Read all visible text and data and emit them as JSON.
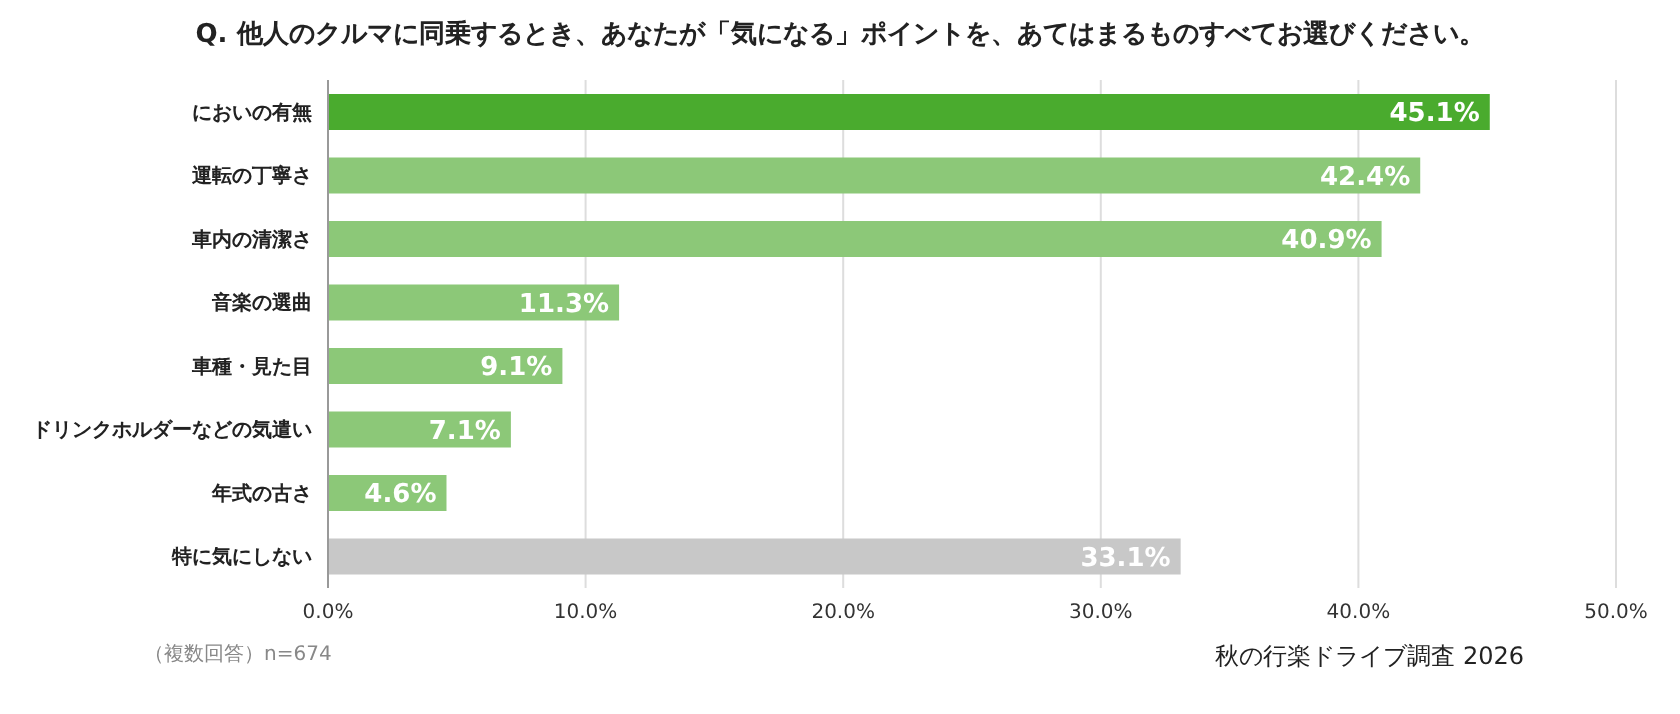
{
  "chart_data": {
    "type": "bar",
    "orientation": "horizontal",
    "title": "Q. 他人のクルマに同乗するとき、あなたが「気になる」ポイントを、あてはまるものすべてお選びください。",
    "categories": [
      "においの有無",
      "運転の丁寧さ",
      "車内の清潔さ",
      "音楽の選曲",
      "車種・見た目",
      "ドリンクホルダーなどの気遣い",
      "年式の古さ",
      "特に気にしない"
    ],
    "values": [
      45.1,
      42.4,
      40.9,
      11.3,
      9.1,
      7.1,
      4.6,
      33.1
    ],
    "value_labels": [
      "45.1%",
      "42.4%",
      "40.9%",
      "11.3%",
      "9.1%",
      "7.1%",
      "4.6%",
      "33.1%"
    ],
    "colors": [
      "#4aab2e",
      "#8cc878",
      "#8cc878",
      "#8cc878",
      "#8cc878",
      "#8cc878",
      "#8cc878",
      "#c8c8c8"
    ],
    "xlim": [
      0,
      50
    ],
    "xticks": [
      {
        "value": 0,
        "label": "0.0%"
      },
      {
        "value": 10,
        "label": "10.0%"
      },
      {
        "value": 20,
        "label": "20.0%"
      },
      {
        "value": 30,
        "label": "30.0%"
      },
      {
        "value": 40,
        "label": "40.0%"
      },
      {
        "value": 50,
        "label": "50.0%"
      }
    ],
    "grid": "x",
    "annotations": [
      "（複数回答）n=674",
      "秋の行楽ドライブ調査 2026"
    ]
  }
}
